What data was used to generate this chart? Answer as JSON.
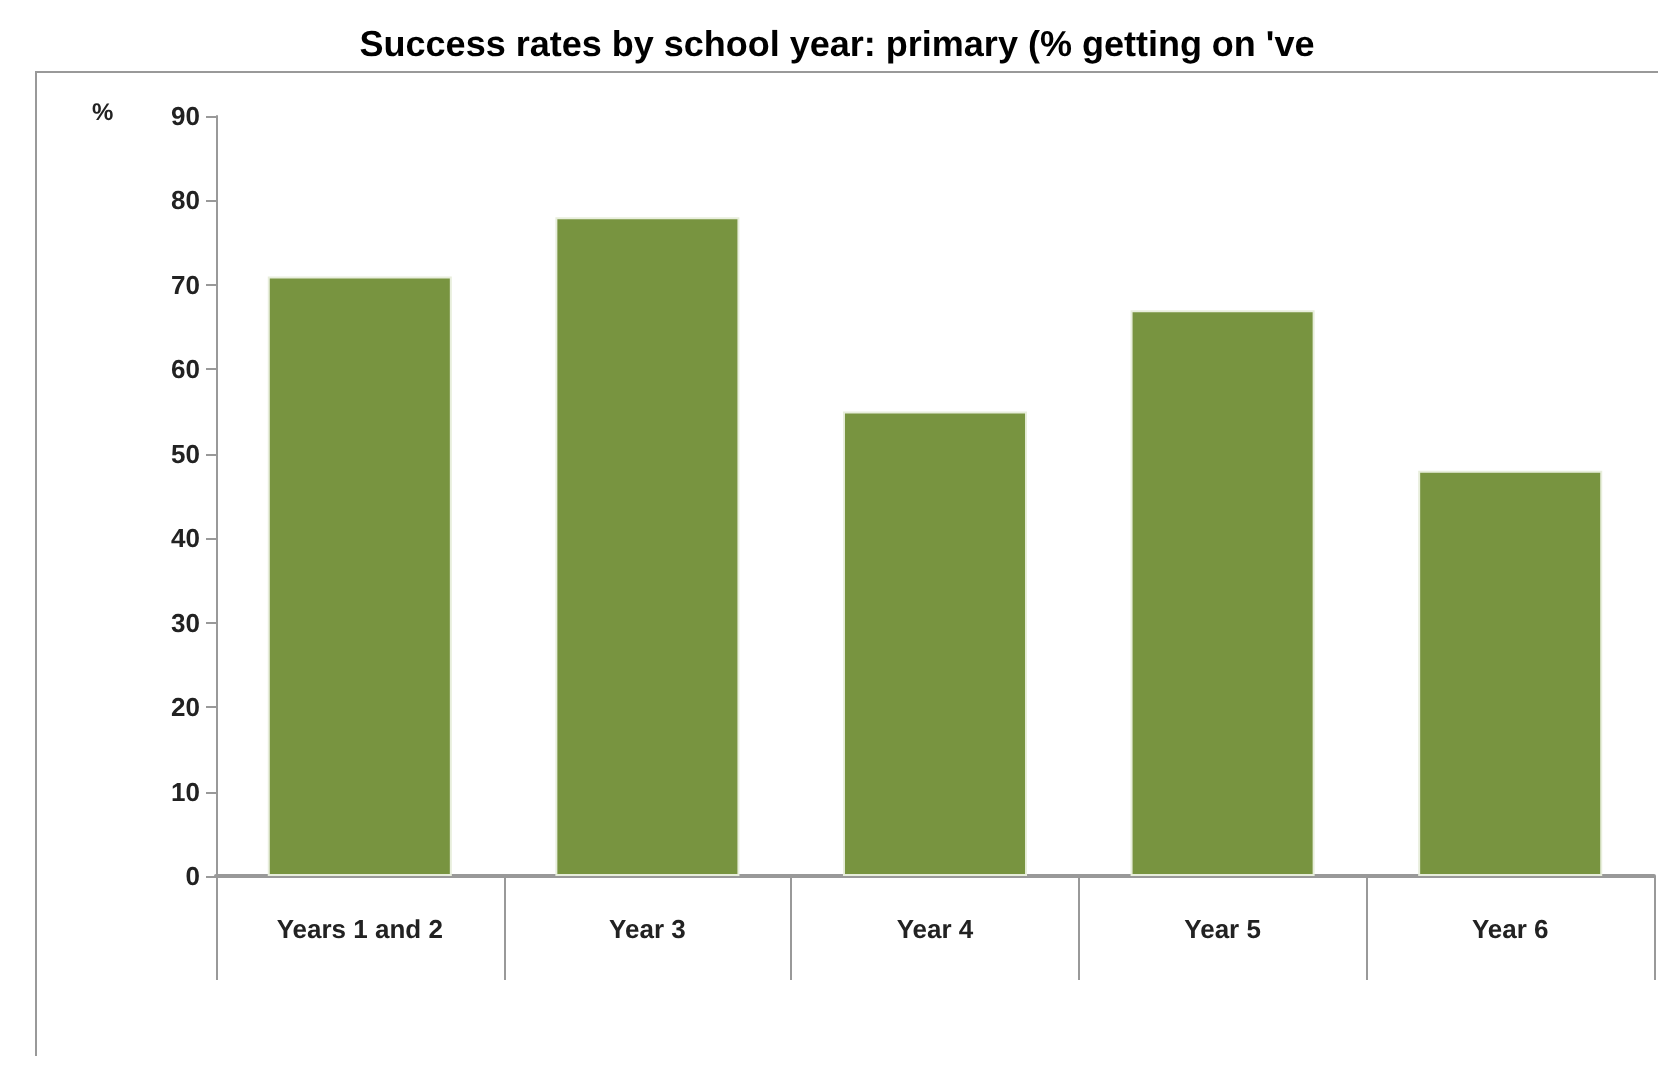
{
  "chart_data": {
    "type": "bar",
    "title": "Success rates by school year: primary (% getting on 've",
    "ylabel": "%",
    "categories": [
      "Years 1 and 2",
      "Year 3",
      "Year 4",
      "Year 5",
      "Year 6"
    ],
    "values": [
      71,
      78,
      55,
      67,
      48
    ],
    "color": "#789440",
    "ylim": [
      0,
      90
    ],
    "yticks": [
      0,
      10,
      20,
      30,
      40,
      50,
      60,
      70,
      80,
      90
    ],
    "grid": false
  }
}
